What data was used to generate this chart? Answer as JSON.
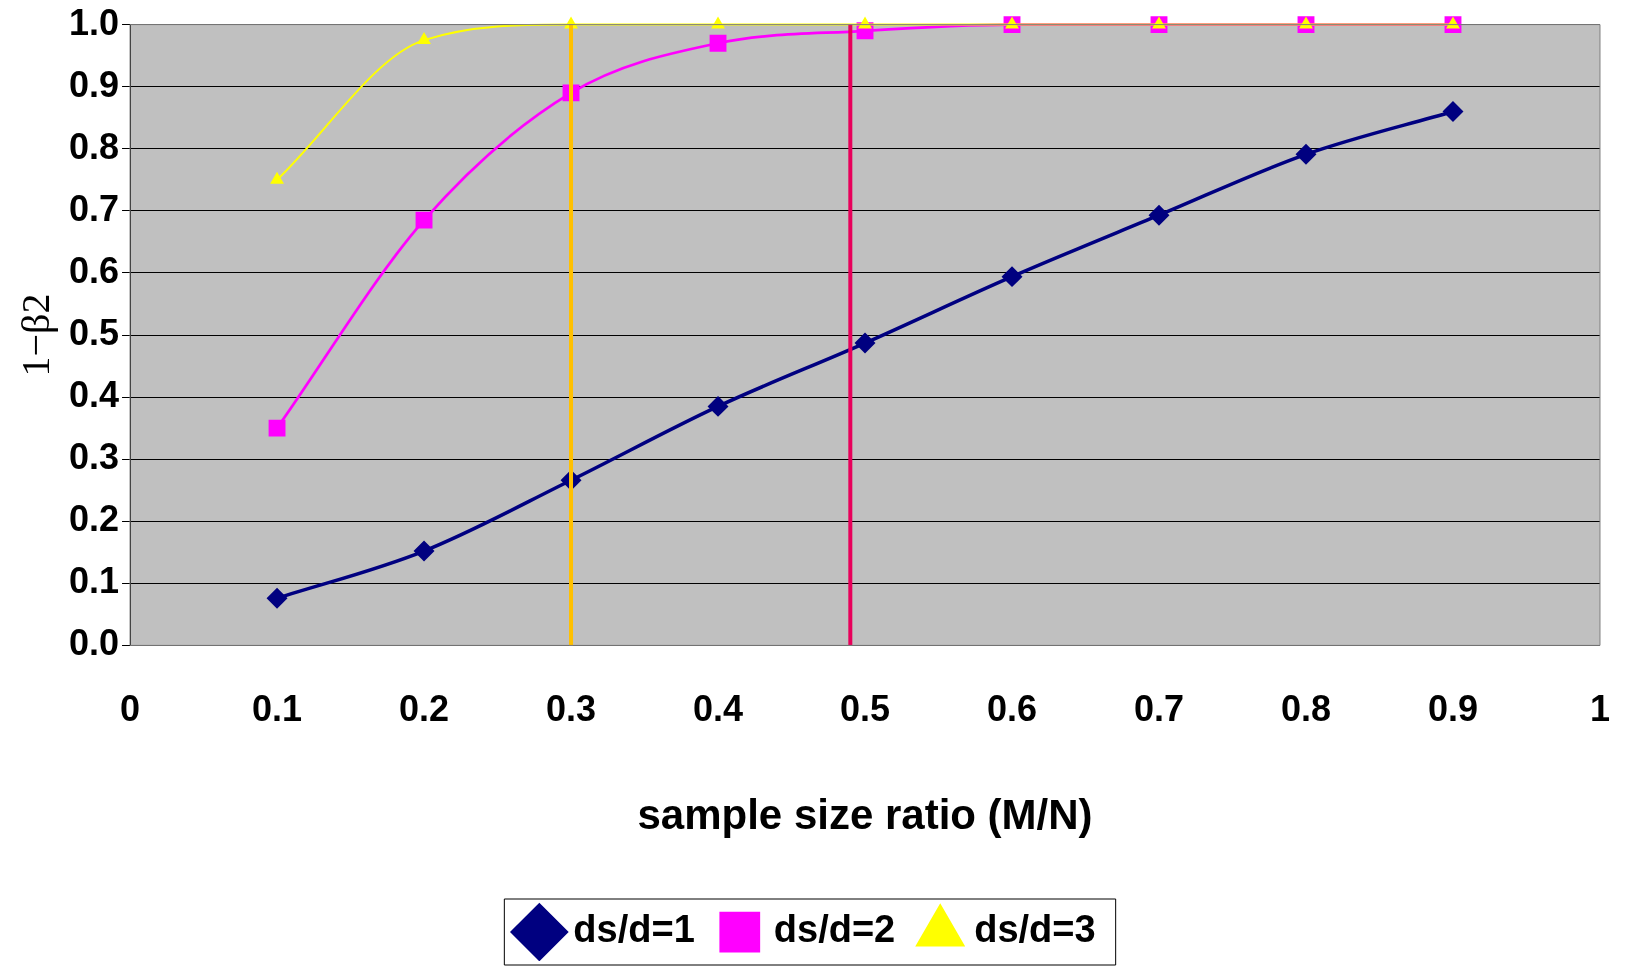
{
  "chart_data": {
    "type": "line",
    "xlabel": "sample size ratio (M/N)",
    "ylabel": "1−β2",
    "xlim": [
      0,
      1
    ],
    "xticks": [
      0,
      0.1,
      0.2,
      0.3,
      0.4,
      0.5,
      0.6,
      0.7,
      0.8,
      0.9,
      1
    ],
    "ylim": [
      0,
      1
    ],
    "yticks": [
      {
        "value": 0,
        "label": "0.0"
      },
      0.1,
      0.2,
      0.3,
      0.4,
      0.5,
      0.6,
      0.7,
      0.8,
      0.9,
      {
        "value": 1,
        "label": "1.0"
      }
    ],
    "x": [
      0.1,
      0.2,
      0.3,
      0.4,
      0.5,
      0.6,
      0.7,
      0.8,
      0.9
    ],
    "series": [
      {
        "name": "ds/d=1",
        "color": "#000080",
        "marker": "diamond",
        "values": [
          0.076,
          0.152,
          0.266,
          0.385,
          0.487,
          0.594,
          0.693,
          0.791,
          0.86
        ]
      },
      {
        "name": "ds/d=2",
        "color": "#ff00ff",
        "marker": "square",
        "values": [
          0.35,
          0.685,
          0.89,
          0.97,
          0.99,
          1,
          1,
          1,
          1
        ]
      },
      {
        "name": "ds/d=3",
        "color": "#ffff00",
        "marker": "triangle",
        "values": [
          0.75,
          0.975,
          1,
          1,
          1,
          1,
          1,
          1,
          1
        ]
      }
    ],
    "ref_lines": [
      {
        "axis": "x",
        "value": 0.3,
        "color": "#ffc000"
      },
      {
        "axis": "x",
        "value": 0.49,
        "color": "#e8005a"
      }
    ],
    "grid": "y",
    "legend": "bottom",
    "line_style": "solid"
  }
}
